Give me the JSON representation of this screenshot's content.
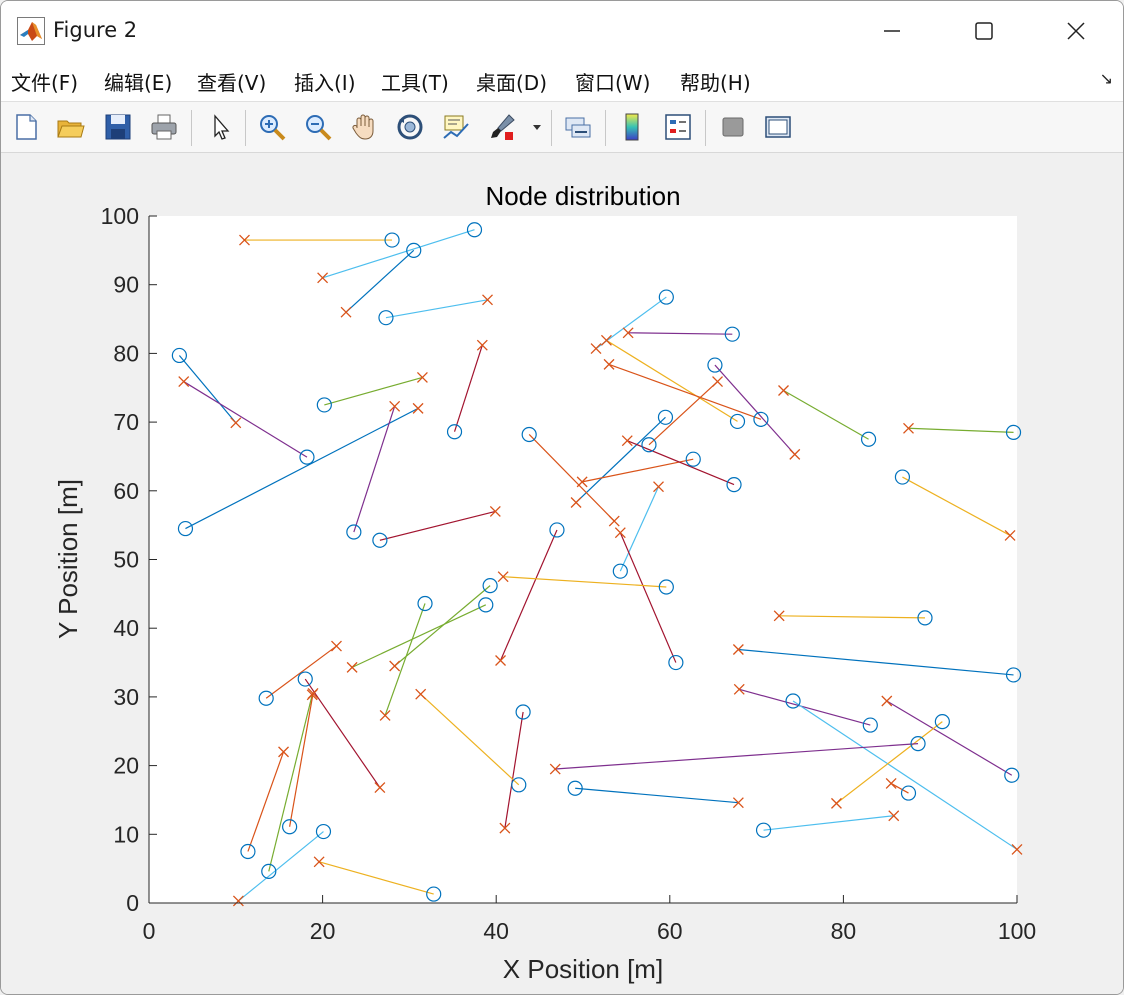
{
  "window": {
    "title": "Figure 2",
    "minimize_icon": "minimize-icon",
    "maximize_icon": "maximize-icon",
    "close_icon": "close-icon"
  },
  "menu": {
    "items": [
      "文件(F)",
      "编辑(E)",
      "查看(V)",
      "插入(I)",
      "工具(T)",
      "桌面(D)",
      "窗口(W)",
      "帮助(H)"
    ]
  },
  "toolbar": {
    "icons": [
      "new-figure-icon",
      "open-file-icon",
      "save-icon",
      "print-icon",
      "pointer-icon",
      "zoom-in-icon",
      "zoom-out-icon",
      "pan-hand-icon",
      "rotate-3d-icon",
      "data-cursor-icon",
      "brush-icon",
      "brush-dropdown-icon",
      "link-plot-icon",
      "colorbar-icon",
      "legend-icon",
      "hide-plot-tools-icon",
      "show-plot-tools-icon"
    ]
  },
  "chart_data": {
    "type": "scatter",
    "title": "Node distribution",
    "xlabel": "X Position [m]",
    "ylabel": "Y Position [m]",
    "xlim": [
      0,
      100
    ],
    "ylim": [
      0,
      100
    ],
    "xticks": [
      0,
      20,
      40,
      60,
      80,
      100
    ],
    "yticks": [
      0,
      10,
      20,
      30,
      40,
      50,
      60,
      70,
      80,
      90,
      100
    ],
    "grid": false,
    "colors": {
      "plot_bg": "#ffffff",
      "marker_o": "#0072bd",
      "marker_x": "#d95319",
      "line_cycle": [
        "#0072bd",
        "#d95319",
        "#edb120",
        "#7e2f8e",
        "#77ac30",
        "#4dbeee",
        "#a2142f"
      ]
    },
    "series": [
      {
        "o": [
          28.0,
          96.5
        ],
        "x": [
          11.0,
          96.5
        ],
        "color": "#edb120"
      },
      {
        "o": [
          37.5,
          98.0
        ],
        "x": [
          20.0,
          91.0
        ],
        "color": "#4dbeee"
      },
      {
        "o": [
          30.5,
          95.0
        ],
        "x": [
          22.7,
          86.0
        ],
        "color": "#0072bd"
      },
      {
        "o": [
          27.3,
          85.2
        ],
        "x": [
          39.0,
          87.8
        ],
        "color": "#4dbeee"
      },
      {
        "o": [
          3.5,
          79.7
        ],
        "x": [
          10.0,
          69.9
        ],
        "color": "#0072bd"
      },
      {
        "o": [
          18.2,
          64.9
        ],
        "x": [
          4.0,
          75.9
        ],
        "color": "#7e2f8e"
      },
      {
        "o": [
          20.2,
          72.5
        ],
        "x": [
          31.5,
          76.5
        ],
        "color": "#77ac30"
      },
      {
        "o": [
          4.2,
          54.5
        ],
        "x": [
          31.0,
          72.0
        ],
        "color": "#0072bd"
      },
      {
        "o": [
          35.2,
          68.6
        ],
        "x": [
          38.4,
          81.2
        ],
        "color": "#a2142f"
      },
      {
        "o": [
          23.6,
          54.0
        ],
        "x": [
          28.3,
          72.3
        ],
        "color": "#7e2f8e"
      },
      {
        "o": [
          26.6,
          52.8
        ],
        "x": [
          39.9,
          57.0
        ],
        "color": "#a2142f"
      },
      {
        "o": [
          59.6,
          88.2
        ],
        "x": [
          51.5,
          80.7
        ],
        "color": "#4dbeee"
      },
      {
        "o": [
          67.2,
          82.8
        ],
        "x": [
          55.2,
          83.0
        ],
        "color": "#7e2f8e"
      },
      {
        "o": [
          67.8,
          70.1
        ],
        "x": [
          52.7,
          81.9
        ],
        "color": "#edb120"
      },
      {
        "o": [
          70.5,
          70.4
        ],
        "x": [
          53.0,
          78.4
        ],
        "color": "#d95319"
      },
      {
        "o": [
          65.2,
          78.3
        ],
        "x": [
          74.4,
          65.3
        ],
        "color": "#7e2f8e"
      },
      {
        "o": [
          57.6,
          66.7
        ],
        "x": [
          65.5,
          75.9
        ],
        "color": "#d95319"
      },
      {
        "o": [
          59.5,
          70.7
        ],
        "x": [
          49.2,
          58.3
        ],
        "color": "#0072bd"
      },
      {
        "o": [
          62.7,
          64.6
        ],
        "x": [
          49.9,
          61.3
        ],
        "color": "#d95319"
      },
      {
        "o": [
          67.4,
          60.9
        ],
        "x": [
          55.1,
          67.3
        ],
        "color": "#a2142f"
      },
      {
        "o": [
          43.8,
          68.2
        ],
        "x": [
          53.6,
          55.6
        ],
        "color": "#d95319"
      },
      {
        "o": [
          54.3,
          48.3
        ],
        "x": [
          58.7,
          60.6
        ],
        "color": "#4dbeee"
      },
      {
        "o": [
          60.7,
          35.0
        ],
        "x": [
          54.3,
          53.9
        ],
        "color": "#a2142f"
      },
      {
        "o": [
          47.0,
          54.3
        ],
        "x": [
          40.5,
          35.3
        ],
        "color": "#a2142f"
      },
      {
        "o": [
          59.6,
          46.0
        ],
        "x": [
          40.8,
          47.5
        ],
        "color": "#edb120"
      },
      {
        "o": [
          82.9,
          67.5
        ],
        "x": [
          73.1,
          74.6
        ],
        "color": "#77ac30"
      },
      {
        "o": [
          99.6,
          68.5
        ],
        "x": [
          87.5,
          69.1
        ],
        "color": "#77ac30"
      },
      {
        "o": [
          86.8,
          62.0
        ],
        "x": [
          99.2,
          53.5
        ],
        "color": "#edb120"
      },
      {
        "o": [
          89.4,
          41.5
        ],
        "x": [
          72.6,
          41.8
        ],
        "color": "#edb120"
      },
      {
        "o": [
          99.6,
          33.2
        ],
        "x": [
          67.9,
          36.9
        ],
        "color": "#0072bd"
      },
      {
        "o": [
          83.1,
          25.9
        ],
        "x": [
          68.0,
          31.1
        ],
        "color": "#7e2f8e"
      },
      {
        "o": [
          99.4,
          18.6
        ],
        "x": [
          85.0,
          29.4
        ],
        "color": "#7e2f8e"
      },
      {
        "o": [
          74.2,
          29.4
        ],
        "x": [
          100.0,
          7.8
        ],
        "color": "#4dbeee"
      },
      {
        "o": [
          91.4,
          26.4
        ],
        "x": [
          79.2,
          14.5
        ],
        "color": "#edb120"
      },
      {
        "o": [
          88.6,
          23.2
        ],
        "x": [
          46.8,
          19.5
        ],
        "color": "#7e2f8e"
      },
      {
        "o": [
          87.5,
          16.0
        ],
        "x": [
          85.5,
          17.4
        ],
        "color": "#d95319"
      },
      {
        "o": [
          70.8,
          10.6
        ],
        "x": [
          85.8,
          12.7
        ],
        "color": "#4dbeee"
      },
      {
        "o": [
          49.1,
          16.7
        ],
        "x": [
          67.9,
          14.6
        ],
        "color": "#0072bd"
      },
      {
        "o": [
          43.1,
          27.8
        ],
        "x": [
          41.0,
          10.9
        ],
        "color": "#a2142f"
      },
      {
        "o": [
          42.6,
          17.2
        ],
        "x": [
          31.3,
          30.4
        ],
        "color": "#edb120"
      },
      {
        "o": [
          38.8,
          43.4
        ],
        "x": [
          23.4,
          34.3
        ],
        "color": "#77ac30"
      },
      {
        "o": [
          39.3,
          46.2
        ],
        "x": [
          28.3,
          34.5
        ],
        "color": "#77ac30"
      },
      {
        "o": [
          31.8,
          43.6
        ],
        "x": [
          27.2,
          27.3
        ],
        "color": "#77ac30"
      },
      {
        "o": [
          13.5,
          29.8
        ],
        "x": [
          21.6,
          37.4
        ],
        "color": "#d95319"
      },
      {
        "o": [
          18.0,
          32.6
        ],
        "x": [
          26.6,
          16.8
        ],
        "color": "#a2142f"
      },
      {
        "o": [
          11.4,
          7.5
        ],
        "x": [
          15.5,
          22.0
        ],
        "color": "#d95319"
      },
      {
        "o": [
          13.8,
          4.6
        ],
        "x": [
          18.8,
          30.3
        ],
        "color": "#77ac30"
      },
      {
        "o": [
          16.2,
          11.1
        ],
        "x": [
          18.9,
          30.5
        ],
        "color": "#d95319"
      },
      {
        "o": [
          20.1,
          10.4
        ],
        "x": [
          10.3,
          0.3
        ],
        "color": "#4dbeee"
      },
      {
        "o": [
          32.8,
          1.3
        ],
        "x": [
          19.6,
          6.0
        ],
        "color": "#edb120"
      }
    ]
  }
}
